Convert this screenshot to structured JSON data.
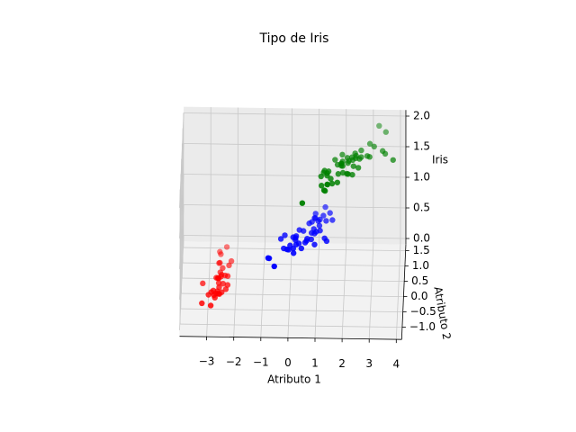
{
  "chart_data": {
    "type": "scatter3d",
    "title": "Tipo de Iris",
    "xlabel": "Atributo 1",
    "ylabel": "Atributo 2",
    "zlabel": "Iris",
    "xlim": [
      -4.0,
      4.2
    ],
    "ylim": [
      -1.4,
      1.7
    ],
    "zlim": [
      -0.1,
      2.1
    ],
    "xticks": [
      {
        "value": -3,
        "label": "−3"
      },
      {
        "value": -2,
        "label": "−2"
      },
      {
        "value": -1,
        "label": "−1"
      },
      0,
      1,
      2,
      3,
      4
    ],
    "yticks": [
      {
        "value": -1.0,
        "label": "−1.0"
      },
      {
        "value": -0.5,
        "label": "−0.5"
      },
      {
        "value": 0.0,
        "label": "0.0"
      },
      {
        "value": 0.5,
        "label": "0.5"
      },
      {
        "value": 1.0,
        "label": "1.0"
      },
      {
        "value": 1.5,
        "label": "1.5"
      }
    ],
    "zticks": [
      {
        "value": 0.0,
        "label": "0.0"
      },
      {
        "value": 0.5,
        "label": "0.5"
      },
      {
        "value": 1.0,
        "label": "1.0"
      },
      {
        "value": 1.5,
        "label": "1.5"
      },
      {
        "value": 2.0,
        "label": "2.0"
      }
    ],
    "grid": true,
    "series": [
      {
        "color": "#ff0000",
        "x": [
          -2.68,
          -2.71,
          -2.89,
          -2.75,
          -2.73,
          -2.28,
          -2.82,
          -2.63,
          -2.89,
          -2.67,
          -2.51,
          -2.61,
          -2.79,
          -3.22,
          -2.64,
          -2.39,
          -2.62,
          -2.65,
          -2.2,
          -2.59,
          -2.31,
          -2.54,
          -3.22,
          -2.3,
          -2.36,
          -2.51,
          -2.47,
          -2.56,
          -2.64,
          -2.63,
          -2.59,
          -2.41,
          -2.65,
          -2.6,
          -2.99
        ],
        "y": [
          0.32,
          -0.18,
          -0.14,
          -0.32,
          0.33,
          0.74,
          -0.09,
          0.16,
          -0.58,
          -0.11,
          0.65,
          0.02,
          -0.24,
          -0.51,
          1.18,
          1.34,
          0.82,
          0.32,
          0.88,
          0.51,
          0.39,
          0.43,
          0.14,
          0.1,
          -0.04,
          -0.14,
          0.14,
          0.37,
          0.31,
          -0.19,
          -0.2,
          0.41,
          0.81,
          1.1,
          -0.23
        ],
        "z": [
          0,
          0,
          0,
          0,
          0,
          0,
          0,
          0,
          0,
          0,
          0,
          0,
          0,
          0,
          0,
          0,
          0,
          0,
          0,
          0,
          0,
          0,
          0,
          0,
          0,
          0,
          0,
          0,
          0,
          0,
          0,
          0,
          0,
          0,
          0
        ]
      },
      {
        "color": "#0000ff",
        "x": [
          1.28,
          0.93,
          1.46,
          0.18,
          1.09,
          0.64,
          1.1,
          -0.75,
          1.04,
          -0.01,
          -0.51,
          0.51,
          0.26,
          0.98,
          -0.17,
          0.93,
          0.66,
          0.23,
          0.94,
          0.04,
          1.12,
          0.36,
          1.3,
          0.92,
          0.71,
          0.9,
          1.33,
          1.56,
          0.81,
          -0.31,
          -0.07,
          -0.19,
          0.14,
          1.38,
          0.59,
          0.81,
          1.22,
          0.81,
          0.25,
          0.16,
          0.46,
          0.89,
          0.23,
          -0.71,
          0.36
        ],
        "y": [
          0.69,
          0.32,
          0.5,
          -0.83,
          0.08,
          -0.42,
          0.28,
          -1.0,
          0.23,
          -0.72,
          -1.27,
          -0.1,
          -0.55,
          -0.12,
          -0.25,
          0.47,
          -0.35,
          -0.33,
          -0.54,
          -0.58,
          -0.08,
          -0.07,
          -0.33,
          -0.18,
          0.15,
          0.33,
          0.24,
          0.27,
          -0.16,
          -0.37,
          -0.71,
          -0.68,
          -0.31,
          -0.42,
          -0.48,
          0.2,
          0.41,
          -0.37,
          -0.27,
          -0.68,
          -0.67,
          -0.03,
          -0.4,
          -1.01,
          -0.51
        ],
        "z": [
          1,
          1,
          1,
          1,
          1,
          1,
          1,
          1,
          1,
          1,
          1,
          1,
          1,
          1,
          1,
          1,
          1,
          1,
          1,
          1,
          1,
          1,
          1,
          1,
          1,
          1,
          1,
          1,
          1,
          1,
          1,
          1,
          1,
          1,
          1,
          1,
          1,
          1,
          1,
          1,
          1,
          1,
          1,
          1,
          1
        ]
      },
      {
        "color": "#008000",
        "x": [
          2.53,
          1.41,
          2.62,
          1.97,
          2.35,
          3.4,
          0.52,
          2.93,
          2.32,
          2.92,
          1.66,
          1.8,
          2.17,
          1.34,
          1.59,
          1.9,
          1.95,
          3.49,
          3.8,
          1.3,
          2.43,
          1.2,
          3.5,
          1.39,
          2.28,
          2.61,
          1.26,
          1.29,
          2.12,
          2.39,
          2.84,
          3.23,
          2.16,
          1.44,
          1.78,
          3.08,
          2.14,
          1.9,
          1.17,
          2.11,
          2.31,
          1.92,
          1.42,
          2.56,
          2.42,
          1.94,
          1.53,
          1.76,
          1.9,
          1.39
        ],
        "y": [
          -0.01,
          -0.57,
          0.34,
          -0.18,
          0.04,
          0.55,
          -1.19,
          0.35,
          -0.24,
          0.78,
          0.24,
          -0.22,
          0.21,
          -0.78,
          -0.54,
          0.12,
          0.04,
          1.17,
          0.26,
          -0.76,
          0.38,
          -0.61,
          0.46,
          -0.2,
          0.33,
          0.56,
          -0.18,
          -0.12,
          -0.21,
          0.46,
          0.38,
          1.37,
          -0.22,
          -0.14,
          -0.5,
          0.69,
          0.14,
          0.05,
          -0.31,
          0.31,
          0.24,
          0.41,
          -0.57,
          0.28,
          0.3,
          0.19,
          -0.38,
          0.08,
          0.12,
          -0.28
        ],
        "z": [
          2,
          2,
          2,
          2,
          2,
          2,
          2,
          2,
          2,
          2,
          2,
          2,
          2,
          2,
          2,
          2,
          2,
          2,
          2,
          2,
          2,
          2,
          2,
          2,
          2,
          2,
          2,
          2,
          2,
          2,
          2,
          2,
          2,
          2,
          2,
          2,
          2,
          2,
          2,
          2,
          2,
          2,
          2,
          2,
          2,
          2,
          2,
          2,
          2,
          2
        ]
      }
    ]
  }
}
